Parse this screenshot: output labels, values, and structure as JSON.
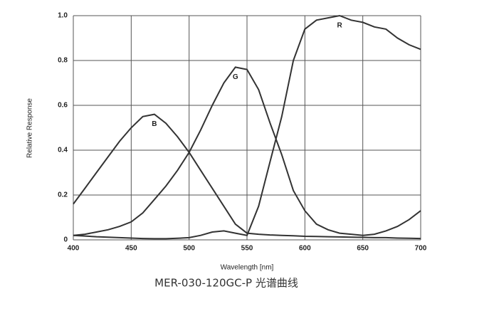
{
  "chart_data": {
    "type": "line",
    "caption": "MER-030-120GC-P 光谱曲线",
    "x_label": "Wavelength [nm]",
    "y_label": "Relative Response",
    "x": [
      400,
      410,
      420,
      430,
      440,
      450,
      460,
      470,
      480,
      490,
      500,
      510,
      520,
      530,
      540,
      550,
      560,
      570,
      580,
      590,
      600,
      610,
      620,
      630,
      640,
      650,
      660,
      670,
      680,
      690,
      700
    ],
    "series": [
      {
        "name": "B",
        "color": "#333333",
        "values": [
          0.16,
          0.23,
          0.3,
          0.37,
          0.44,
          0.5,
          0.55,
          0.56,
          0.52,
          0.46,
          0.39,
          0.31,
          0.23,
          0.15,
          0.07,
          0.03,
          0.025,
          0.022,
          0.02,
          0.018,
          0.016,
          0.015,
          0.014,
          0.013,
          0.012,
          0.011,
          0.01,
          0.01,
          0.008,
          0.007,
          0.006
        ]
      },
      {
        "name": "G",
        "color": "#333333",
        "values": [
          0.02,
          0.025,
          0.035,
          0.045,
          0.06,
          0.08,
          0.12,
          0.18,
          0.24,
          0.31,
          0.39,
          0.49,
          0.6,
          0.7,
          0.77,
          0.76,
          0.67,
          0.52,
          0.38,
          0.22,
          0.13,
          0.07,
          0.045,
          0.03,
          0.025,
          0.02,
          0.025,
          0.04,
          0.06,
          0.09,
          0.13
        ]
      },
      {
        "name": "R",
        "color": "#333333",
        "values": [
          0.02,
          0.017,
          0.014,
          0.012,
          0.01,
          0.008,
          0.006,
          0.005,
          0.005,
          0.007,
          0.01,
          0.02,
          0.035,
          0.04,
          0.03,
          0.02,
          0.15,
          0.35,
          0.55,
          0.8,
          0.94,
          0.98,
          0.99,
          1.0,
          0.98,
          0.97,
          0.95,
          0.94,
          0.9,
          0.87,
          0.85
        ]
      }
    ],
    "xlim": [
      400,
      700
    ],
    "xticks": [
      400,
      450,
      500,
      550,
      600,
      650,
      700
    ],
    "ylim": [
      0,
      1
    ],
    "yticks": [
      0,
      0.2,
      0.4,
      0.6,
      0.8,
      {
        "value": 1,
        "label": "1.0"
      }
    ],
    "grid": true
  }
}
